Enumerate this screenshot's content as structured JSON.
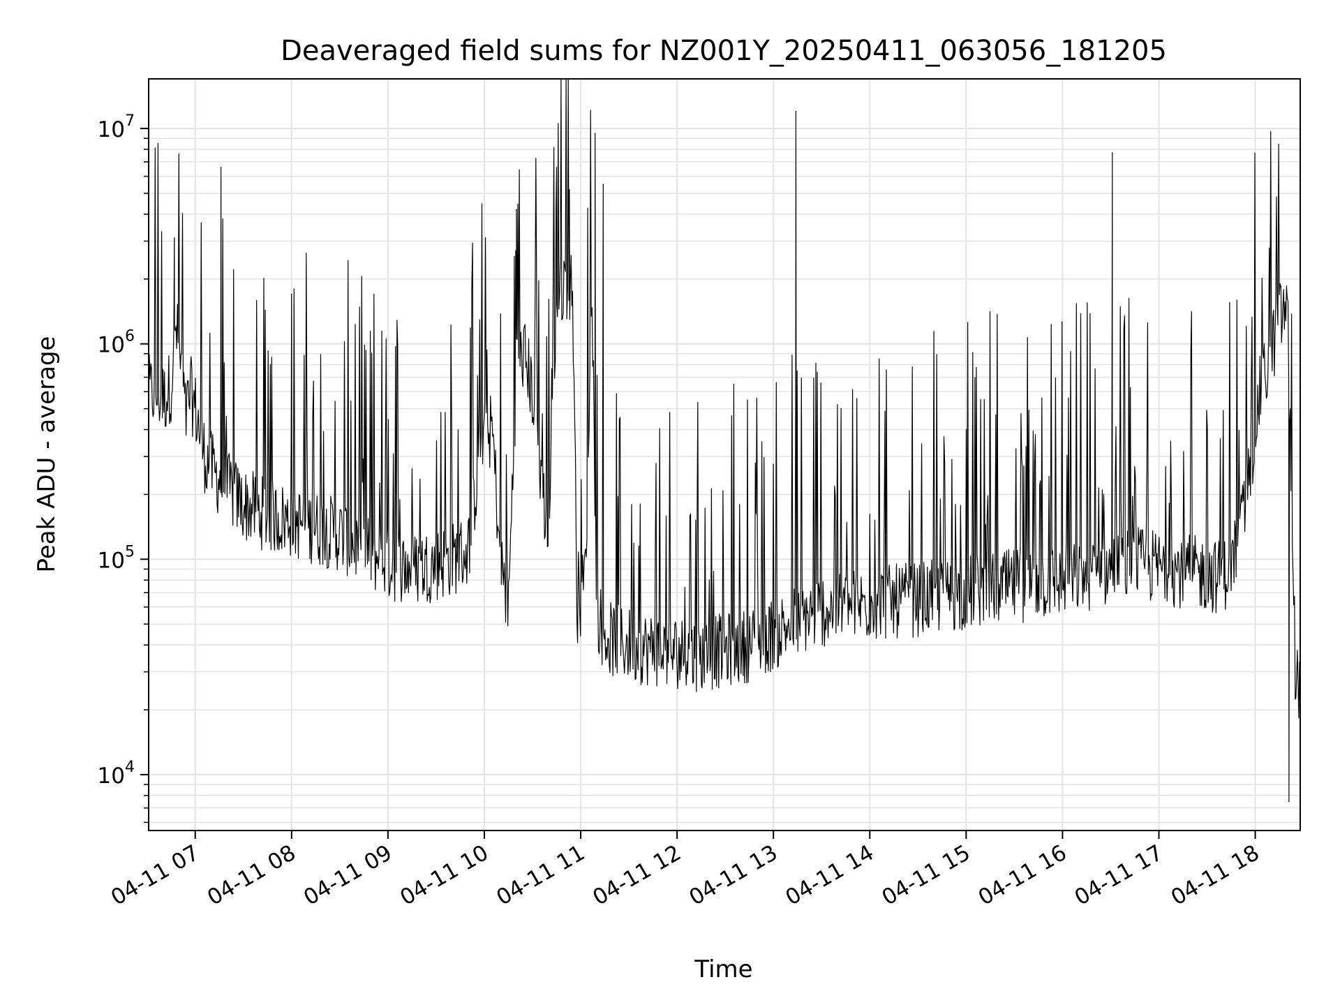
{
  "chart_data": {
    "type": "line",
    "title": "Deaveraged field sums for NZ001Y_20250411_063056_181205",
    "xlabel": "Time",
    "ylabel": "Peak ADU - average",
    "yscale": "log",
    "grid": "major and minor",
    "ylim": [
      5500,
      17000000
    ],
    "xlim": [
      "2025-04-11 06:31",
      "2025-04-11 18:28"
    ],
    "x_ticks": [
      {
        "x": "2025-04-11 07:00",
        "label": "04-11 07"
      },
      {
        "x": "2025-04-11 08:00",
        "label": "04-11 08"
      },
      {
        "x": "2025-04-11 09:00",
        "label": "04-11 09"
      },
      {
        "x": "2025-04-11 10:00",
        "label": "04-11 10"
      },
      {
        "x": "2025-04-11 11:00",
        "label": "04-11 11"
      },
      {
        "x": "2025-04-11 12:00",
        "label": "04-11 12"
      },
      {
        "x": "2025-04-11 13:00",
        "label": "04-11 13"
      },
      {
        "x": "2025-04-11 14:00",
        "label": "04-11 14"
      },
      {
        "x": "2025-04-11 15:00",
        "label": "04-11 15"
      },
      {
        "x": "2025-04-11 16:00",
        "label": "04-11 16"
      },
      {
        "x": "2025-04-11 17:00",
        "label": "04-11 17"
      },
      {
        "x": "2025-04-11 18:00",
        "label": "04-11 18"
      }
    ],
    "y_ticks": [
      {
        "value": 10000,
        "base": "10",
        "exp": "4"
      },
      {
        "value": 100000,
        "base": "10",
        "exp": "5"
      },
      {
        "value": 1000000,
        "base": "10",
        "exp": "6"
      },
      {
        "value": 10000000,
        "base": "10",
        "exp": "7"
      }
    ],
    "series_color": "#000000",
    "series": [
      {
        "x": [
          "2025-04-11 06:31",
          "2025-04-11 06:41",
          "2025-04-11 06:45",
          "2025-04-11 06:48",
          "2025-04-11 06:51",
          "2025-04-11 06:54",
          "2025-04-11 06:57",
          "2025-04-11 07:00",
          "2025-04-11 07:06",
          "2025-04-11 07:12",
          "2025-04-11 07:18",
          "2025-04-11 07:30",
          "2025-04-11 07:45",
          "2025-04-11 08:00",
          "2025-04-11 08:15",
          "2025-04-11 08:30",
          "2025-04-11 08:45",
          "2025-04-11 09:00",
          "2025-04-11 09:15",
          "2025-04-11 09:30",
          "2025-04-11 09:40",
          "2025-04-11 09:50",
          "2025-04-11 09:58",
          "2025-04-11 10:05",
          "2025-04-11 10:10",
          "2025-04-11 10:15",
          "2025-04-11 10:20",
          "2025-04-11 10:25",
          "2025-04-11 10:30",
          "2025-04-11 10:35",
          "2025-04-11 10:40",
          "2025-04-11 10:45",
          "2025-04-11 10:50",
          "2025-04-11 10:55",
          "2025-04-11 10:58",
          "2025-04-11 11:03",
          "2025-04-11 11:07",
          "2025-04-11 11:10",
          "2025-04-11 11:14",
          "2025-04-11 11:20",
          "2025-04-11 11:30",
          "2025-04-11 11:45",
          "2025-04-11 12:00",
          "2025-04-11 12:15",
          "2025-04-11 12:30",
          "2025-04-11 12:45",
          "2025-04-11 13:00",
          "2025-04-11 13:15",
          "2025-04-11 13:30",
          "2025-04-11 13:45",
          "2025-04-11 14:00",
          "2025-04-11 14:30",
          "2025-04-11 15:00",
          "2025-04-11 15:30",
          "2025-04-11 16:00",
          "2025-04-11 16:15",
          "2025-04-11 16:30",
          "2025-04-11 16:45",
          "2025-04-11 17:00",
          "2025-04-11 17:15",
          "2025-04-11 17:30",
          "2025-04-11 17:40",
          "2025-04-11 17:50",
          "2025-04-11 18:00",
          "2025-04-11 18:03",
          "2025-04-11 18:10",
          "2025-04-11 18:15",
          "2025-04-11 18:20",
          "2025-04-11 18:25",
          "2025-04-11 18:28"
        ],
        "y": [
          600000,
          560000,
          650000,
          1200000,
          800000,
          450000,
          600000,
          500000,
          300000,
          250000,
          220000,
          180000,
          160000,
          150000,
          140000,
          130000,
          110000,
          95000,
          90000,
          95000,
          100000,
          110000,
          350000,
          400000,
          100000,
          60000,
          800000,
          900000,
          600000,
          250000,
          120000,
          1500000,
          2000000,
          1800000,
          50000,
          90000,
          2000000,
          60000,
          45000,
          42000,
          40000,
          38000,
          37000,
          36000,
          38000,
          40000,
          45000,
          52000,
          58000,
          60000,
          62000,
          65000,
          70000,
          75000,
          80000,
          85000,
          90000,
          95000,
          92000,
          88000,
          85000,
          82000,
          120000,
          400000,
          600000,
          900000,
          1300000,
          1500000,
          30000,
          25000
        ]
      }
    ],
    "spikes": [
      {
        "x": "2025-04-11 06:47",
        "y": 3100000
      },
      {
        "x": "2025-04-11 07:16",
        "y": 6600000
      },
      {
        "x": "2025-04-11 08:00",
        "y": 1700000
      },
      {
        "x": "2025-04-11 10:20",
        "y": 4200000
      },
      {
        "x": "2025-04-11 10:45",
        "y": 6600000
      },
      {
        "x": "2025-04-11 10:53",
        "y": 5200000
      },
      {
        "x": "2025-04-11 11:09",
        "y": 9500000
      },
      {
        "x": "2025-04-11 11:14",
        "y": 5500000
      },
      {
        "x": "2025-04-11 13:14",
        "y": 12000000
      },
      {
        "x": "2025-04-11 16:31",
        "y": 7700000
      },
      {
        "x": "2025-04-11 18:16",
        "y": 1850000
      },
      {
        "x": "2025-04-11 18:21",
        "y": 7500
      }
    ]
  }
}
